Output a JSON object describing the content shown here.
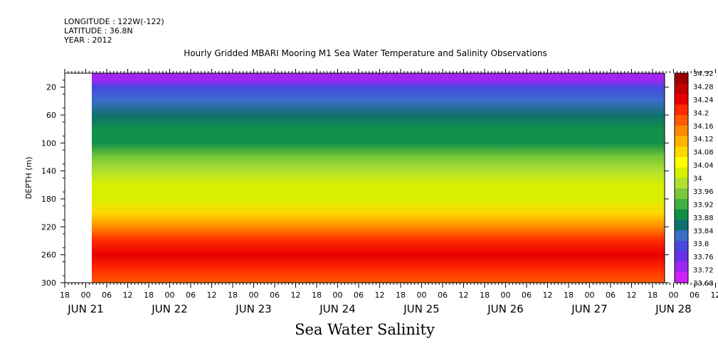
{
  "meta": {
    "longitude": "LONGITUDE : 122W(-122)",
    "latitude": "LATITUDE : 36.8N",
    "year": "YEAR : 2012"
  },
  "chart_data": {
    "type": "heatmap",
    "title": "Hourly Gridded MBARI Mooring M1 Sea Water Temperature and Salinity Observations",
    "xlabel": "Sea Water Salinity",
    "ylabel": "DEPTH (m)",
    "variable": "Sea Water Salinity",
    "ylim": [
      300,
      0
    ],
    "y_ticks": [
      20,
      60,
      100,
      140,
      180,
      220,
      260,
      300
    ],
    "x_hour_ticks": [
      "18",
      "00",
      "06",
      "12",
      "18",
      "00",
      "06",
      "12",
      "18",
      "00",
      "06",
      "12",
      "18",
      "00",
      "06",
      "12",
      "18",
      "00",
      "06",
      "12",
      "18",
      "00",
      "06",
      "12",
      "18",
      "00",
      "06",
      "12",
      "18",
      "00",
      "06",
      "12",
      "18"
    ],
    "x_day_labels": [
      "JUN 21",
      "JUN 22",
      "JUN 23",
      "JUN 24",
      "JUN 25",
      "JUN 26",
      "JUN 27",
      "JUN 28"
    ],
    "colorbar_levels": [
      "34.32",
      "34.28",
      "34.24",
      "34.2",
      "34.16",
      "34.12",
      "34.08",
      "34.04",
      "34",
      "33.96",
      "33.92",
      "33.88",
      "33.84",
      "33.8",
      "33.76",
      "33.72",
      "33.68"
    ],
    "colorbar_colors": [
      "#9b0000",
      "#c30000",
      "#e80000",
      "#ff2a00",
      "#ff5a00",
      "#ff8a00",
      "#ffb400",
      "#ffd800",
      "#ffff00",
      "#d8f000",
      "#b0e030",
      "#78c838",
      "#40b040",
      "#109048",
      "#107070",
      "#3a6ec8",
      "#4848e0",
      "#6a30e8",
      "#9e26f0",
      "#d020f8"
    ],
    "depth_profile": [
      {
        "depth": 10,
        "value": 33.7
      },
      {
        "depth": 20,
        "value": 33.75
      },
      {
        "depth": 40,
        "value": 33.79
      },
      {
        "depth": 60,
        "value": 33.83
      },
      {
        "depth": 80,
        "value": 33.86
      },
      {
        "depth": 100,
        "value": 33.89
      },
      {
        "depth": 120,
        "value": 33.93
      },
      {
        "depth": 140,
        "value": 34.0
      },
      {
        "depth": 160,
        "value": 34.02
      },
      {
        "depth": 180,
        "value": 34.03
      },
      {
        "depth": 200,
        "value": 34.08
      },
      {
        "depth": 220,
        "value": 34.17
      },
      {
        "depth": 240,
        "value": 34.25
      },
      {
        "depth": 260,
        "value": 34.27
      },
      {
        "depth": 280,
        "value": 34.23
      },
      {
        "depth": 300,
        "value": 34.19
      }
    ],
    "data_start": "JUN 21 16:00"
  }
}
